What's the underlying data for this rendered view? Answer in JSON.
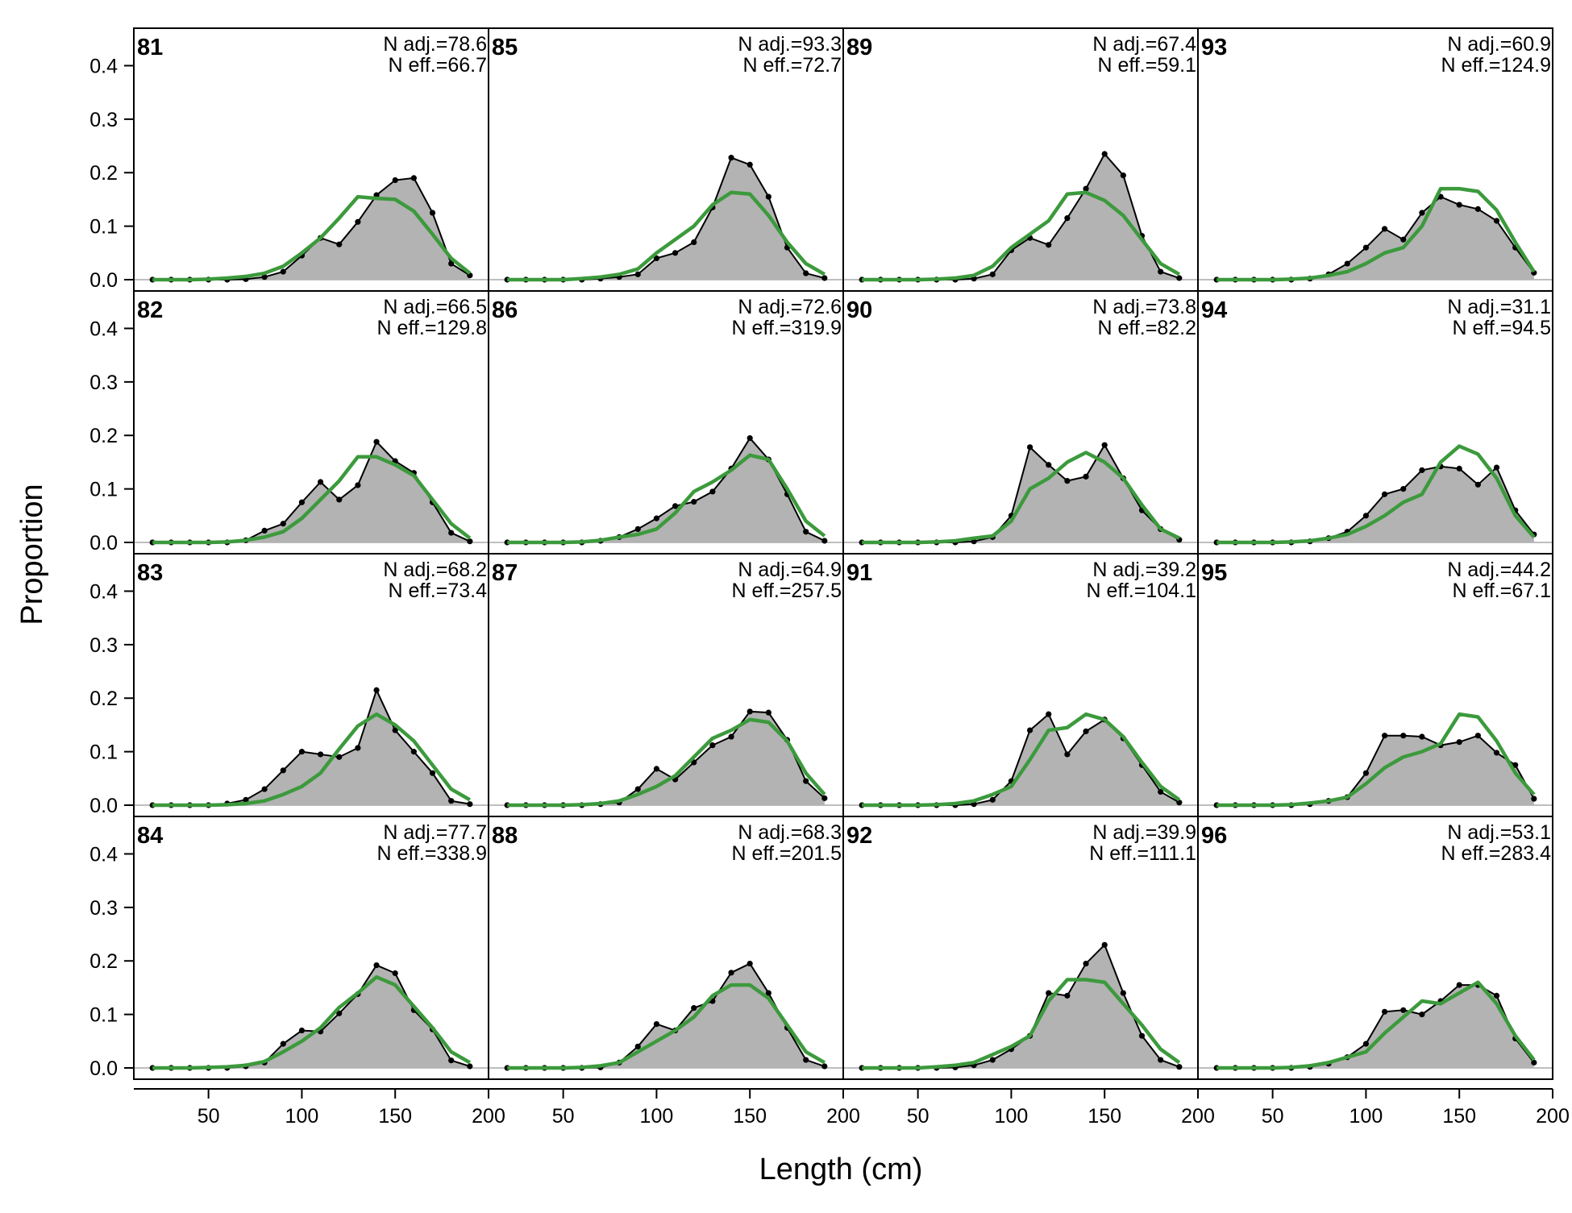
{
  "figure": {
    "xlabel": "Length (cm)",
    "ylabel": "Proportion"
  },
  "chart_data": {
    "type": "area",
    "layout": "4x4 panel grid, column-major",
    "xlabel": "Length (cm)",
    "ylabel": "Proportion",
    "xlim": [
      10,
      200
    ],
    "ylim": [
      0,
      0.47
    ],
    "xticks": [
      50,
      100,
      150,
      200
    ],
    "yticks": [
      0.0,
      0.1,
      0.2,
      0.3,
      0.4
    ],
    "xtick_labels": [
      "50",
      "100",
      "150",
      "200"
    ],
    "ytick_labels": [
      "0.0",
      "0.1",
      "0.2",
      "0.3",
      "0.4"
    ],
    "grid": false,
    "x": [
      20,
      30,
      40,
      50,
      60,
      70,
      80,
      90,
      100,
      110,
      120,
      130,
      140,
      150,
      160,
      170,
      180,
      190
    ],
    "series_style": {
      "observed": "grey-filled area with black line and points",
      "expected": "green line"
    },
    "colors": {
      "observed_fill": "#b3b3b3",
      "observed_line": "#000000",
      "expected_line": "#3c9a3c",
      "zero_line": "#bebebe"
    },
    "panels": [
      {
        "label": "81",
        "n_adj": "N adj.=78.6",
        "n_eff": "N eff.=66.7",
        "observed": [
          0,
          0,
          0,
          0,
          0,
          0.001,
          0.005,
          0.015,
          0.045,
          0.078,
          0.066,
          0.108,
          0.158,
          0.186,
          0.19,
          0.125,
          0.03,
          0.008
        ],
        "expected": [
          0,
          0,
          0,
          0.001,
          0.003,
          0.006,
          0.012,
          0.025,
          0.05,
          0.078,
          0.115,
          0.155,
          0.152,
          0.15,
          0.128,
          0.085,
          0.04,
          0.012
        ]
      },
      {
        "label": "82",
        "n_adj": "N adj.=66.5",
        "n_eff": "N eff.=129.8",
        "observed": [
          0,
          0,
          0,
          0,
          0,
          0.004,
          0.022,
          0.035,
          0.075,
          0.113,
          0.08,
          0.107,
          0.188,
          0.152,
          0.13,
          0.075,
          0.018,
          0.002
        ],
        "expected": [
          0,
          0,
          0,
          0,
          0.001,
          0.004,
          0.01,
          0.02,
          0.045,
          0.08,
          0.115,
          0.16,
          0.16,
          0.145,
          0.125,
          0.08,
          0.035,
          0.008
        ]
      },
      {
        "label": "83",
        "n_adj": "N adj.=68.2",
        "n_eff": "N eff.=73.4",
        "observed": [
          0,
          0,
          0,
          0,
          0.003,
          0.01,
          0.03,
          0.065,
          0.1,
          0.095,
          0.09,
          0.107,
          0.215,
          0.14,
          0.1,
          0.06,
          0.008,
          0.002
        ],
        "expected": [
          0,
          0,
          0,
          0,
          0.001,
          0.003,
          0.008,
          0.02,
          0.035,
          0.06,
          0.105,
          0.148,
          0.17,
          0.15,
          0.12,
          0.075,
          0.03,
          0.01
        ]
      },
      {
        "label": "84",
        "n_adj": "N adj.=77.7",
        "n_eff": "N eff.=338.9",
        "observed": [
          0,
          0,
          0,
          0,
          0,
          0.003,
          0.01,
          0.045,
          0.07,
          0.068,
          0.102,
          0.138,
          0.192,
          0.177,
          0.108,
          0.072,
          0.014,
          0.003
        ],
        "expected": [
          0,
          0,
          0,
          0.001,
          0.002,
          0.005,
          0.012,
          0.03,
          0.05,
          0.075,
          0.113,
          0.14,
          0.17,
          0.155,
          0.115,
          0.075,
          0.03,
          0.01
        ]
      },
      {
        "label": "85",
        "n_adj": "N adj.=93.3",
        "n_eff": "N eff.=72.7",
        "observed": [
          0,
          0,
          0,
          0,
          0,
          0.002,
          0.005,
          0.01,
          0.04,
          0.05,
          0.07,
          0.135,
          0.228,
          0.215,
          0.155,
          0.06,
          0.012,
          0.003
        ],
        "expected": [
          0,
          0,
          0,
          0,
          0.002,
          0.005,
          0.01,
          0.02,
          0.05,
          0.075,
          0.1,
          0.14,
          0.163,
          0.16,
          0.12,
          0.07,
          0.03,
          0.01
        ]
      },
      {
        "label": "86",
        "n_adj": "N adj.=72.6",
        "n_eff": "N eff.=319.9",
        "observed": [
          0,
          0,
          0,
          0,
          0,
          0.003,
          0.01,
          0.025,
          0.045,
          0.068,
          0.076,
          0.095,
          0.138,
          0.195,
          0.155,
          0.09,
          0.02,
          0.003
        ],
        "expected": [
          0,
          0,
          0,
          0,
          0.001,
          0.004,
          0.01,
          0.015,
          0.025,
          0.055,
          0.095,
          0.113,
          0.135,
          0.163,
          0.155,
          0.1,
          0.04,
          0.012
        ]
      },
      {
        "label": "87",
        "n_adj": "N adj.=64.9",
        "n_eff": "N eff.=257.5",
        "observed": [
          0,
          0,
          0,
          0,
          0,
          0.002,
          0.005,
          0.03,
          0.068,
          0.048,
          0.08,
          0.112,
          0.128,
          0.175,
          0.173,
          0.122,
          0.045,
          0.013
        ],
        "expected": [
          0,
          0,
          0,
          0,
          0.001,
          0.003,
          0.008,
          0.02,
          0.035,
          0.055,
          0.09,
          0.125,
          0.14,
          0.16,
          0.155,
          0.12,
          0.06,
          0.02
        ]
      },
      {
        "label": "88",
        "n_adj": "N adj.=68.3",
        "n_eff": "N eff.=201.5",
        "observed": [
          0,
          0,
          0,
          0,
          0,
          0.001,
          0.01,
          0.04,
          0.082,
          0.07,
          0.112,
          0.125,
          0.178,
          0.195,
          0.14,
          0.075,
          0.015,
          0.003
        ],
        "expected": [
          0,
          0,
          0,
          0,
          0.001,
          0.004,
          0.01,
          0.03,
          0.05,
          0.07,
          0.095,
          0.135,
          0.155,
          0.155,
          0.13,
          0.08,
          0.03,
          0.01
        ]
      },
      {
        "label": "89",
        "n_adj": "N adj.=67.4",
        "n_eff": "N eff.=59.1",
        "observed": [
          0,
          0,
          0,
          0,
          0,
          0,
          0.002,
          0.01,
          0.055,
          0.078,
          0.065,
          0.115,
          0.17,
          0.235,
          0.195,
          0.082,
          0.015,
          0.003
        ],
        "expected": [
          0,
          0,
          0,
          0,
          0.001,
          0.003,
          0.008,
          0.025,
          0.06,
          0.085,
          0.11,
          0.16,
          0.163,
          0.148,
          0.12,
          0.075,
          0.03,
          0.01
        ]
      },
      {
        "label": "90",
        "n_adj": "N adj.=73.8",
        "n_eff": "N eff.=82.2",
        "observed": [
          0,
          0,
          0,
          0,
          0,
          0,
          0.002,
          0.01,
          0.05,
          0.178,
          0.145,
          0.115,
          0.123,
          0.182,
          0.12,
          0.06,
          0.025,
          0.005
        ],
        "expected": [
          0,
          0,
          0,
          0,
          0.001,
          0.003,
          0.008,
          0.012,
          0.04,
          0.1,
          0.12,
          0.15,
          0.168,
          0.15,
          0.12,
          0.07,
          0.025,
          0.008
        ]
      },
      {
        "label": "91",
        "n_adj": "N adj.=39.2",
        "n_eff": "N eff.=104.1",
        "observed": [
          0,
          0,
          0,
          0,
          0,
          0,
          0.002,
          0.01,
          0.045,
          0.14,
          0.17,
          0.095,
          0.138,
          0.16,
          0.125,
          0.075,
          0.025,
          0.005
        ],
        "expected": [
          0,
          0,
          0,
          0,
          0.001,
          0.003,
          0.008,
          0.02,
          0.035,
          0.085,
          0.14,
          0.145,
          0.17,
          0.16,
          0.128,
          0.08,
          0.035,
          0.01
        ]
      },
      {
        "label": "92",
        "n_adj": "N adj.=39.9",
        "n_eff": "N eff.=111.1",
        "observed": [
          0,
          0,
          0,
          0,
          0,
          0.001,
          0.005,
          0.015,
          0.035,
          0.06,
          0.14,
          0.135,
          0.195,
          0.23,
          0.14,
          0.06,
          0.015,
          0.002
        ],
        "expected": [
          0,
          0,
          0,
          0,
          0.002,
          0.005,
          0.01,
          0.025,
          0.04,
          0.06,
          0.125,
          0.165,
          0.165,
          0.16,
          0.12,
          0.08,
          0.035,
          0.01
        ]
      },
      {
        "label": "93",
        "n_adj": "N adj.=60.9",
        "n_eff": "N eff.=124.9",
        "observed": [
          0,
          0,
          0,
          0,
          0,
          0.002,
          0.01,
          0.03,
          0.06,
          0.095,
          0.075,
          0.125,
          0.155,
          0.14,
          0.132,
          0.11,
          0.06,
          0.013
        ],
        "expected": [
          0,
          0,
          0,
          0,
          0.001,
          0.003,
          0.008,
          0.015,
          0.03,
          0.05,
          0.06,
          0.1,
          0.17,
          0.17,
          0.165,
          0.13,
          0.07,
          0.015
        ]
      },
      {
        "label": "94",
        "n_adj": "N adj.=31.1",
        "n_eff": "N eff.=94.5",
        "observed": [
          0,
          0,
          0,
          0,
          0,
          0.002,
          0.008,
          0.02,
          0.05,
          0.09,
          0.1,
          0.135,
          0.142,
          0.138,
          0.108,
          0.14,
          0.06,
          0.015
        ],
        "expected": [
          0,
          0,
          0,
          0,
          0.001,
          0.003,
          0.008,
          0.015,
          0.03,
          0.05,
          0.075,
          0.09,
          0.15,
          0.18,
          0.165,
          0.12,
          0.05,
          0.01
        ]
      },
      {
        "label": "95",
        "n_adj": "N adj.=44.2",
        "n_eff": "N eff.=67.1",
        "observed": [
          0,
          0,
          0,
          0,
          0,
          0.002,
          0.008,
          0.015,
          0.06,
          0.13,
          0.13,
          0.128,
          0.112,
          0.118,
          0.13,
          0.098,
          0.075,
          0.012
        ],
        "expected": [
          0,
          0,
          0,
          0,
          0.001,
          0.004,
          0.008,
          0.015,
          0.04,
          0.07,
          0.09,
          0.1,
          0.115,
          0.17,
          0.165,
          0.12,
          0.06,
          0.02
        ]
      },
      {
        "label": "96",
        "n_adj": "N adj.=53.1",
        "n_eff": "N eff.=283.4",
        "observed": [
          0,
          0,
          0,
          0,
          0,
          0.002,
          0.008,
          0.02,
          0.045,
          0.105,
          0.108,
          0.1,
          0.125,
          0.155,
          0.155,
          0.135,
          0.055,
          0.01
        ],
        "expected": [
          0,
          0,
          0,
          0,
          0.001,
          0.004,
          0.01,
          0.02,
          0.03,
          0.065,
          0.095,
          0.125,
          0.12,
          0.14,
          0.16,
          0.12,
          0.06,
          0.015
        ]
      }
    ]
  }
}
